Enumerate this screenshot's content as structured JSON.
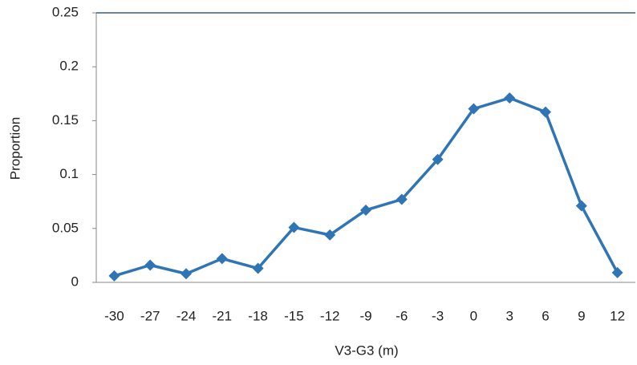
{
  "chart_data": {
    "type": "line",
    "x_label": "V3-G3 (m)",
    "y_label": "Proportion",
    "categories": [
      "-30",
      "-27",
      "-24",
      "-21",
      "-18",
      "-15",
      "-12",
      "-9",
      "-6",
      "-3",
      "0",
      "3",
      "6",
      "9",
      "12"
    ],
    "values": [
      0.006,
      0.016,
      0.008,
      0.022,
      0.013,
      0.051,
      0.044,
      0.067,
      0.077,
      0.114,
      0.161,
      0.171,
      0.158,
      0.071,
      0.009
    ],
    "color": "#2f75b5",
    "ylim": [
      0,
      0.25
    ],
    "yticks": [
      0,
      0.05,
      0.1,
      0.15,
      0.2,
      0.25
    ],
    "grid": false
  }
}
